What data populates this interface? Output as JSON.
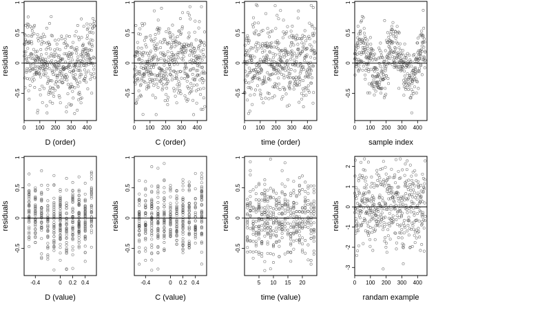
{
  "figure": {
    "background": "#ffffff",
    "point_color": "#555555",
    "line_color": "#000000"
  },
  "chart_data": [
    {
      "type": "scatter",
      "xlabel": "D (order)",
      "ylabel": "residuals",
      "xlim": [
        0,
        460
      ],
      "ylim": [
        -0.95,
        1.02
      ],
      "xticks": [
        0,
        100,
        200,
        300,
        400
      ],
      "yticks": [
        -0.5,
        0.0,
        0.5,
        1.0
      ],
      "hline": 0,
      "n_points": 450,
      "x_kind": "index",
      "pattern": "u-shape",
      "spread": 0.3
    },
    {
      "type": "scatter",
      "xlabel": "C (order)",
      "ylabel": "residuals",
      "xlim": [
        0,
        460
      ],
      "ylim": [
        -0.95,
        1.02
      ],
      "xticks": [
        0,
        100,
        200,
        300,
        400
      ],
      "yticks": [
        -0.5,
        0.0,
        0.5,
        1.0
      ],
      "hline": 0,
      "n_points": 450,
      "x_kind": "index",
      "pattern": "flat",
      "spread": 0.33
    },
    {
      "type": "scatter",
      "xlabel": "time (order)",
      "ylabel": "residuals",
      "xlim": [
        0,
        460
      ],
      "ylim": [
        -0.95,
        1.02
      ],
      "xticks": [
        0,
        100,
        200,
        300,
        400
      ],
      "yticks": [
        -0.5,
        0.0,
        0.5,
        1.0
      ],
      "hline": 0,
      "n_points": 450,
      "x_kind": "index",
      "pattern": "flat",
      "spread": 0.33
    },
    {
      "type": "scatter",
      "xlabel": "sample index",
      "ylabel": "residuals",
      "xlim": [
        0,
        460
      ],
      "ylim": [
        -0.95,
        1.02
      ],
      "xticks": [
        0,
        100,
        200,
        300,
        400
      ],
      "yticks": [
        -0.5,
        0.0,
        0.5,
        1.0
      ],
      "hline": 0,
      "n_points": 450,
      "x_kind": "index",
      "pattern": "wave",
      "spread": 0.22
    },
    {
      "type": "scatter",
      "xlabel": "D (value)",
      "ylabel": "residuals",
      "xlim": [
        -0.58,
        0.58
      ],
      "ylim": [
        -0.95,
        1.02
      ],
      "xticks": [
        -0.4,
        0.0,
        0.2,
        0.4
      ],
      "yticks": [
        -0.5,
        0.0,
        0.5,
        1.0
      ],
      "hline": 0,
      "n_points": 450,
      "x_kind": "discrete",
      "x_levels": [
        -0.5,
        -0.4,
        -0.3,
        -0.2,
        -0.1,
        0.0,
        0.1,
        0.2,
        0.3,
        0.4,
        0.5
      ],
      "pattern": "u-shape-value",
      "spread": 0.3
    },
    {
      "type": "scatter",
      "xlabel": "C (value)",
      "ylabel": "residuals",
      "xlim": [
        -0.58,
        0.58
      ],
      "ylim": [
        -0.95,
        1.02
      ],
      "xticks": [
        -0.4,
        0.0,
        0.2,
        0.4
      ],
      "yticks": [
        -0.5,
        0.0,
        0.5,
        1.0
      ],
      "hline": 0,
      "n_points": 450,
      "x_kind": "discrete",
      "x_levels": [
        -0.5,
        -0.4,
        -0.3,
        -0.2,
        -0.1,
        0.0,
        0.1,
        0.2,
        0.3,
        0.4,
        0.5
      ],
      "pattern": "flat",
      "spread": 0.33
    },
    {
      "type": "scatter",
      "xlabel": "time (value)",
      "ylabel": "residuals",
      "xlim": [
        0,
        25
      ],
      "ylim": [
        -0.95,
        1.02
      ],
      "xticks": [
        5,
        10,
        15,
        20
      ],
      "yticks": [
        -0.5,
        0.0,
        0.5,
        1.0
      ],
      "hline": 0,
      "n_points": 450,
      "x_kind": "discrete",
      "x_levels": [
        1,
        2,
        3,
        4,
        5,
        6,
        7,
        8,
        9,
        10,
        11,
        12,
        13,
        14,
        15,
        16,
        17,
        18,
        19,
        20,
        21,
        22,
        23,
        24
      ],
      "pattern": "flat",
      "spread": 0.33
    },
    {
      "type": "scatter",
      "xlabel": "randam example",
      "ylabel": "residuals",
      "xlim": [
        0,
        460
      ],
      "ylim": [
        -3.4,
        2.5
      ],
      "xticks": [
        0,
        100,
        200,
        300,
        400
      ],
      "yticks": [
        -3,
        -2,
        -1,
        0,
        1,
        2
      ],
      "hline": 0,
      "n_points": 450,
      "x_kind": "index",
      "pattern": "normal",
      "spread": 1.0
    }
  ]
}
